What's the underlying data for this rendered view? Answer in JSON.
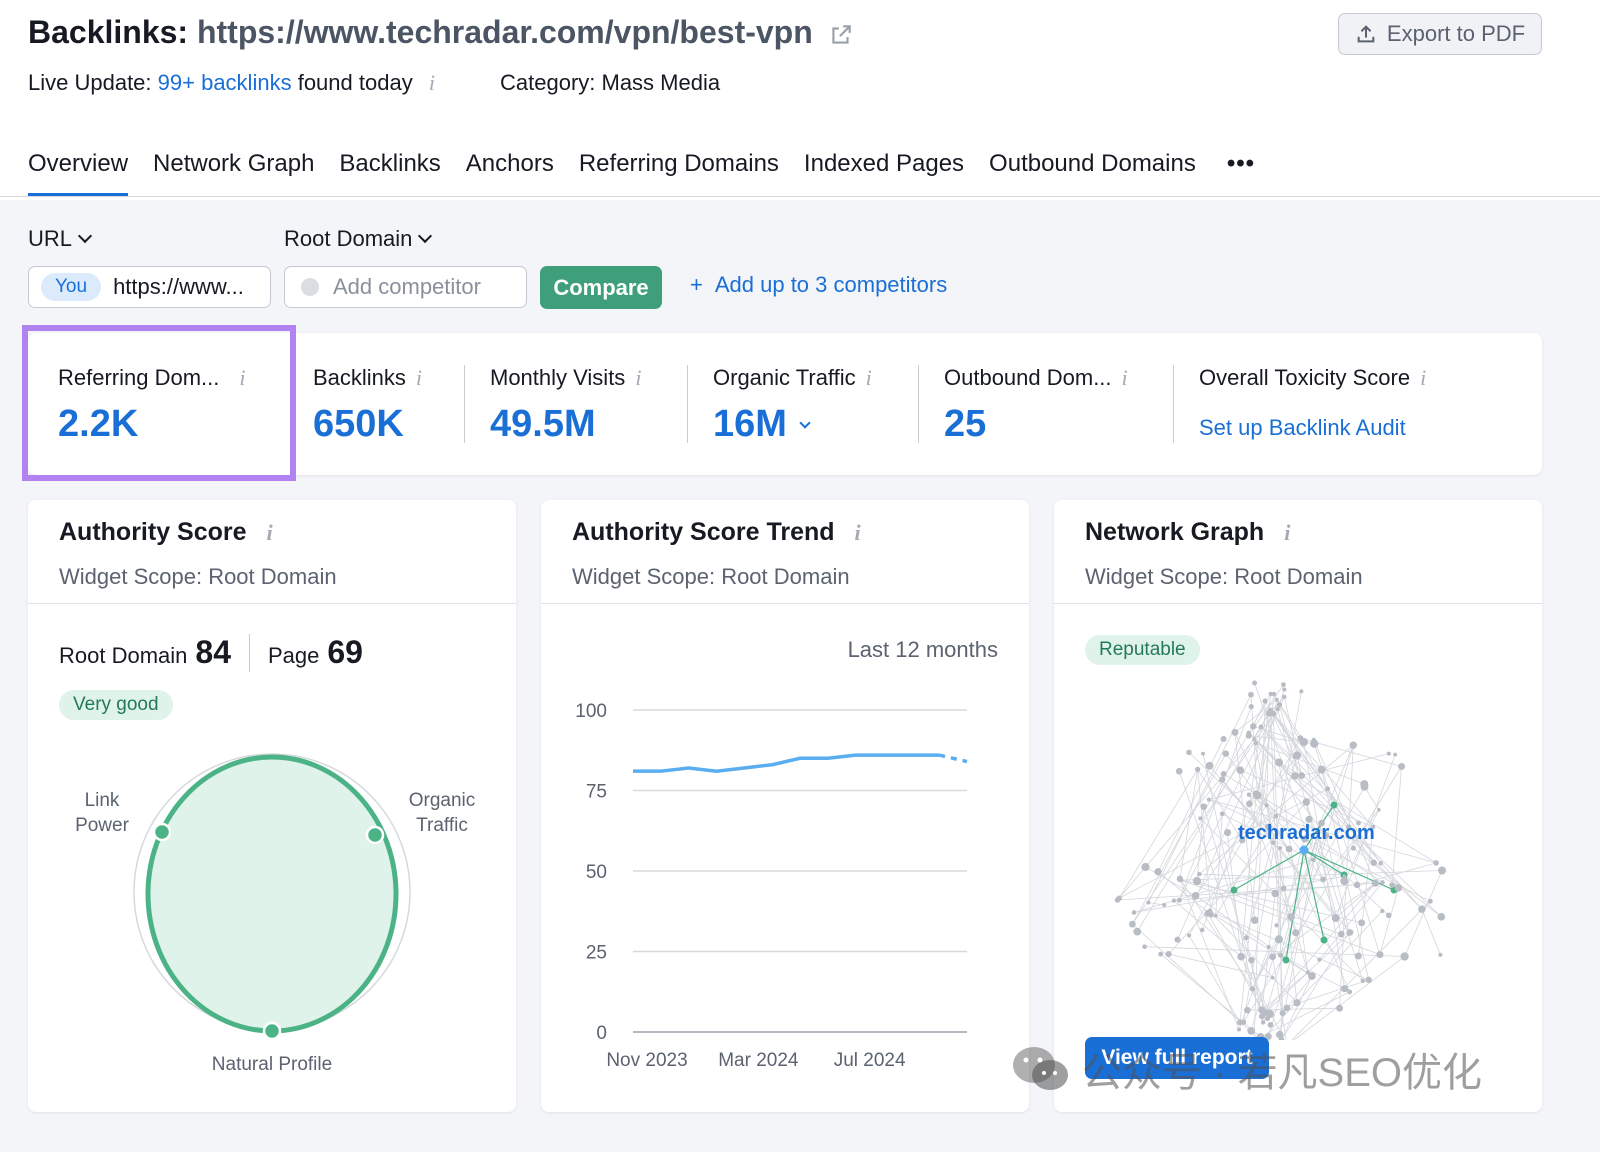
{
  "header": {
    "title_prefix": "Backlinks:",
    "title_url": "https://www.techradar.com/vpn/best-vpn",
    "export_label": "Export to PDF",
    "live_update_label": "Live Update:",
    "live_update_link": "99+ backlinks",
    "live_update_suffix": "found today",
    "category": "Category: Mass Media"
  },
  "tabs": [
    {
      "label": "Overview",
      "active": true
    },
    {
      "label": "Network Graph"
    },
    {
      "label": "Backlinks"
    },
    {
      "label": "Anchors"
    },
    {
      "label": "Referring Domains"
    },
    {
      "label": "Indexed Pages"
    },
    {
      "label": "Outbound Domains"
    },
    {
      "label": "•••"
    }
  ],
  "controls": {
    "url_label": "URL",
    "root_domain_label": "Root Domain",
    "you_badge": "You",
    "you_value": "https://www...",
    "competitor_placeholder": "Add competitor",
    "compare_label": "Compare",
    "add_competitors": "Add up to 3 competitors"
  },
  "metrics": [
    {
      "label": "Referring Dom...",
      "value": "2.2K"
    },
    {
      "label": "Backlinks",
      "value": "650K"
    },
    {
      "label": "Monthly Visits",
      "value": "49.5M"
    },
    {
      "label": "Organic Traffic",
      "value": "16M"
    },
    {
      "label": "Outbound Dom...",
      "value": "25"
    },
    {
      "label": "Overall Toxicity Score",
      "link": "Set up Backlink Audit"
    }
  ],
  "authority": {
    "title": "Authority Score",
    "scope": "Widget Scope: Root Domain",
    "root_label": "Root Domain",
    "root_value": "84",
    "page_label": "Page",
    "page_value": "69",
    "badge": "Very good",
    "radar_labels": {
      "link_1": "Link",
      "link_2": "Power",
      "organic_1": "Organic",
      "organic_2": "Traffic",
      "natural": "Natural Profile"
    }
  },
  "trend": {
    "title": "Authority Score Trend",
    "scope": "Widget Scope: Root Domain",
    "period": "Last 12 months"
  },
  "network": {
    "title": "Network Graph",
    "scope": "Widget Scope: Root Domain",
    "badge": "Reputable",
    "domain": "techradar.com",
    "button": "View full report"
  },
  "watermark": "公众号 · 若凡SEO优化",
  "colors": {
    "accent": "#1a6fd6",
    "green": "#3e9f7a",
    "highlight": "#b083f0"
  },
  "chart_data": {
    "type": "line",
    "x": [
      "Nov 2023",
      "Dec 2023",
      "Jan 2024",
      "Feb 2024",
      "Mar 2024",
      "Apr 2024",
      "May 2024",
      "Jun 2024",
      "Jul 2024",
      "Aug 2024",
      "Sep 2024",
      "Oct 2024",
      "Nov 2024"
    ],
    "xticks": [
      "Nov 2023",
      "Mar 2024",
      "Jul 2024"
    ],
    "series": [
      {
        "values": [
          81,
          81,
          82,
          81,
          82,
          83,
          85,
          85,
          86,
          86,
          86,
          86,
          84
        ]
      }
    ],
    "yticks": [
      0,
      25,
      50,
      75,
      100
    ],
    "ylim": [
      0,
      100
    ]
  }
}
